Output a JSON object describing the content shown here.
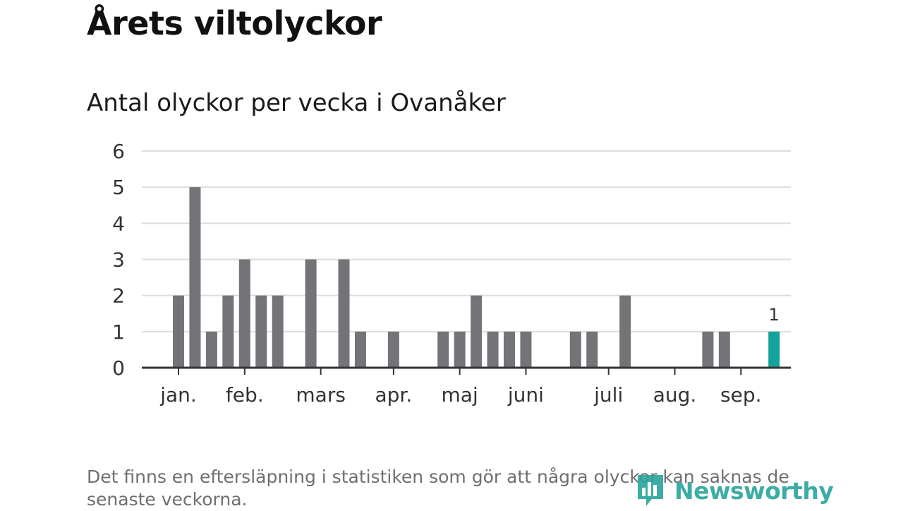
{
  "header": {
    "title": "Årets viltolyckor",
    "subtitle": "Antal olyckor per vecka i Ovanåker"
  },
  "footer": {
    "note": "Det finns en eftersläpning i statistiken som gör att några olyckor kan saknas de senaste veckorna.",
    "logo_text": "Newsworthy",
    "logo_icon": "bar-chart-speech-bubble-icon"
  },
  "chart_data": {
    "type": "bar",
    "title": "Antal olyckor per vecka i Ovanåker",
    "xlabel": "",
    "ylabel": "",
    "ylim": [
      0,
      6
    ],
    "y_ticks": [
      0,
      1,
      2,
      3,
      4,
      5,
      6
    ],
    "grid": true,
    "weeks": [
      1,
      2,
      3,
      4,
      5,
      6,
      7,
      8,
      9,
      10,
      11,
      12,
      13,
      14,
      15,
      16,
      17,
      18,
      19,
      20,
      21,
      22,
      23,
      24,
      25,
      26,
      27,
      28,
      29,
      30,
      31,
      32,
      33,
      34,
      35,
      36,
      37,
      38,
      39,
      40
    ],
    "values": [
      2,
      5,
      1,
      2,
      3,
      2,
      2,
      0,
      3,
      0,
      3,
      1,
      0,
      1,
      0,
      0,
      1,
      1,
      2,
      1,
      1,
      1,
      0,
      0,
      1,
      1,
      0,
      2,
      0,
      0,
      0,
      0,
      1,
      1,
      0,
      0,
      1,
      0,
      0,
      0
    ],
    "highlight_week": 37,
    "highlight_label": "1",
    "month_ticks": [
      {
        "label": "jan.",
        "week": 1
      },
      {
        "label": "feb.",
        "week": 5
      },
      {
        "label": "mars",
        "week": 9.6
      },
      {
        "label": "apr.",
        "week": 14
      },
      {
        "label": "maj",
        "week": 18
      },
      {
        "label": "juni",
        "week": 22
      },
      {
        "label": "juli",
        "week": 27
      },
      {
        "label": "aug.",
        "week": 31
      },
      {
        "label": "sep.",
        "week": 35
      }
    ],
    "colors": {
      "bar": "#747378",
      "highlight": "#14a39a",
      "grid": "#dddddd",
      "axis": "#333333",
      "text": "#333333"
    }
  }
}
